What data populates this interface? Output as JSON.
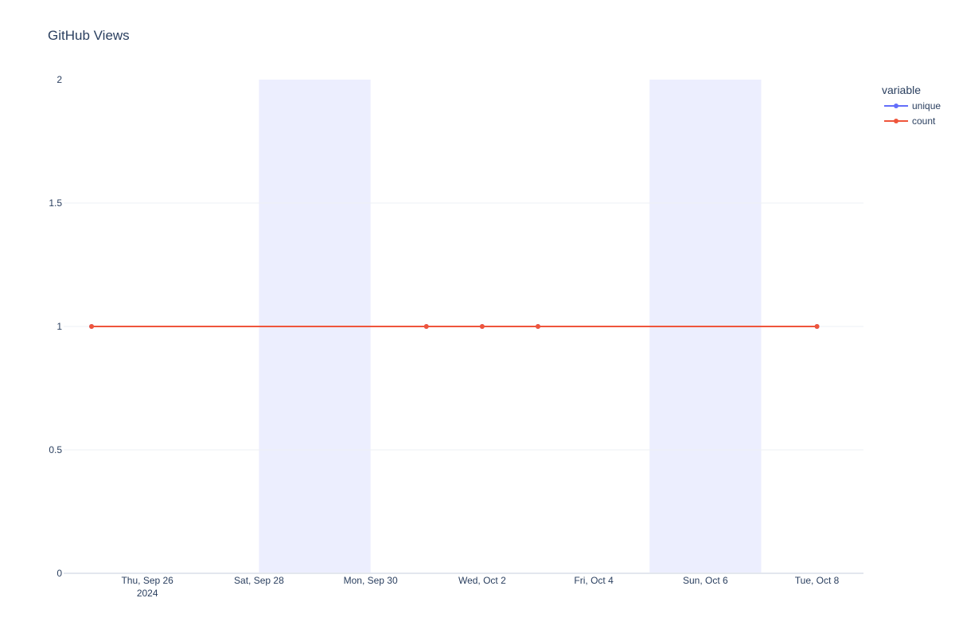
{
  "chart_data": {
    "type": "line",
    "title": "GitHub Views",
    "xlabel": "",
    "ylabel": "",
    "x_axis_type": "date",
    "xlim": [
      "2024-09-24T12:00",
      "2024-10-08T20:00"
    ],
    "ylim": [
      0,
      2
    ],
    "y_ticks": [
      0,
      0.5,
      1,
      1.5,
      2
    ],
    "y_tick_labels": [
      "0",
      "0.5",
      "1",
      "1.5",
      "2"
    ],
    "x_ticks": [
      {
        "date": "2024-09-26",
        "label": "Thu, Sep 26",
        "sublabel": "2024"
      },
      {
        "date": "2024-09-28",
        "label": "Sat, Sep 28",
        "sublabel": ""
      },
      {
        "date": "2024-09-30",
        "label": "Mon, Sep 30",
        "sublabel": ""
      },
      {
        "date": "2024-10-02",
        "label": "Wed, Oct 2",
        "sublabel": ""
      },
      {
        "date": "2024-10-04",
        "label": "Fri, Oct 4",
        "sublabel": ""
      },
      {
        "date": "2024-10-06",
        "label": "Sun, Oct 6",
        "sublabel": ""
      },
      {
        "date": "2024-10-08",
        "label": "Tue, Oct 8",
        "sublabel": ""
      }
    ],
    "weekend_bands": [
      [
        "2024-09-28",
        "2024-09-30"
      ],
      [
        "2024-10-05",
        "2024-10-07"
      ]
    ],
    "grid": true,
    "legend": {
      "title": "variable",
      "position": "top-right"
    },
    "series": [
      {
        "name": "unique",
        "color": "#636efa",
        "x": [
          "2024-09-25",
          "2024-10-01",
          "2024-10-02",
          "2024-10-03",
          "2024-10-08"
        ],
        "y": [
          1,
          1,
          1,
          1,
          1
        ]
      },
      {
        "name": "count",
        "color": "#ef553b",
        "x": [
          "2024-09-25",
          "2024-10-01",
          "2024-10-02",
          "2024-10-03",
          "2024-10-08"
        ],
        "y": [
          1,
          1,
          1,
          1,
          1
        ]
      }
    ],
    "colors": {
      "band": "#eceefe",
      "grid": "#eef0f4",
      "axis_line": "#e3e7ee",
      "text": "#2a3f5f"
    }
  }
}
